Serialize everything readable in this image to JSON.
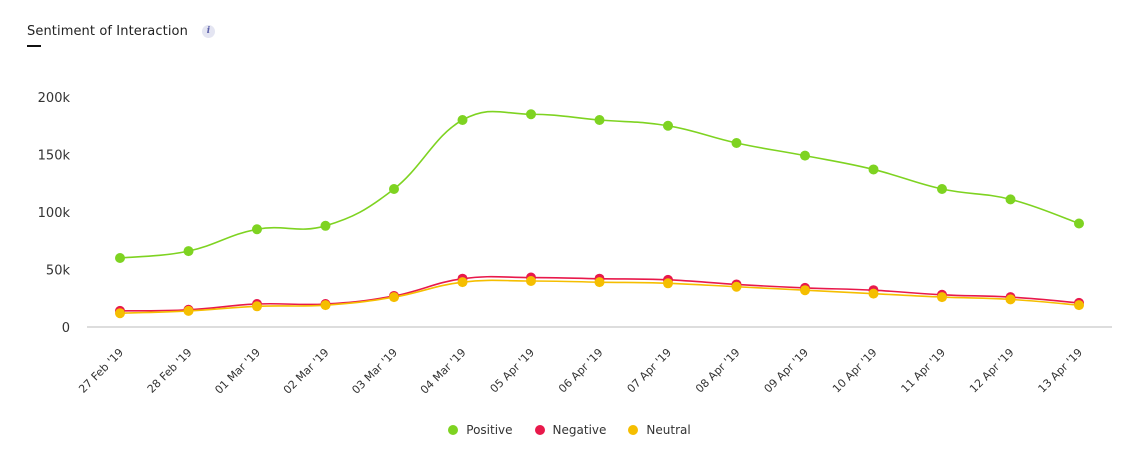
{
  "header": {
    "title": "Sentiment of Interaction",
    "info_icon": "info-icon",
    "info_glyph": "i"
  },
  "colors": {
    "positive": "#7ed321",
    "negative": "#e8194b",
    "neutral": "#f5be00",
    "axis": "#bbbbbb"
  },
  "chart_data": {
    "type": "line",
    "title": "Sentiment of Interaction",
    "xlabel": "",
    "ylabel": "",
    "categories": [
      "27 Feb '19",
      "28 Feb '19",
      "01 Mar '19",
      "02 Mar '19",
      "03 Mar '19",
      "04 Mar '19",
      "05 Apr '19",
      "06 Apr '19",
      "07 Apr '19",
      "08 Apr '19",
      "09 Apr '19",
      "10 Apr '19",
      "11 Apr '19",
      "12 Apr '19",
      "13 Apr '19"
    ],
    "y_ticks": [
      0,
      50000,
      100000,
      150000,
      200000
    ],
    "y_tick_labels": [
      "0",
      "50k",
      "100k",
      "150k",
      "200k"
    ],
    "ylim": [
      0,
      200000
    ],
    "grid": false,
    "legend_position": "bottom-center",
    "series": [
      {
        "name": "Positive",
        "color": "#7ed321",
        "values": [
          60000,
          66000,
          85000,
          88000,
          120000,
          180000,
          185000,
          180000,
          175000,
          160000,
          149000,
          137000,
          120000,
          111000,
          90000
        ]
      },
      {
        "name": "Negative",
        "color": "#e8194b",
        "values": [
          14000,
          15000,
          20000,
          20000,
          27000,
          42000,
          43000,
          42000,
          41000,
          37000,
          34000,
          32000,
          28000,
          26000,
          21000
        ]
      },
      {
        "name": "Neutral",
        "color": "#f5be00",
        "values": [
          12000,
          14000,
          18000,
          19000,
          26000,
          39000,
          40000,
          39000,
          38000,
          35000,
          32000,
          29000,
          26000,
          24000,
          19000
        ]
      }
    ]
  }
}
